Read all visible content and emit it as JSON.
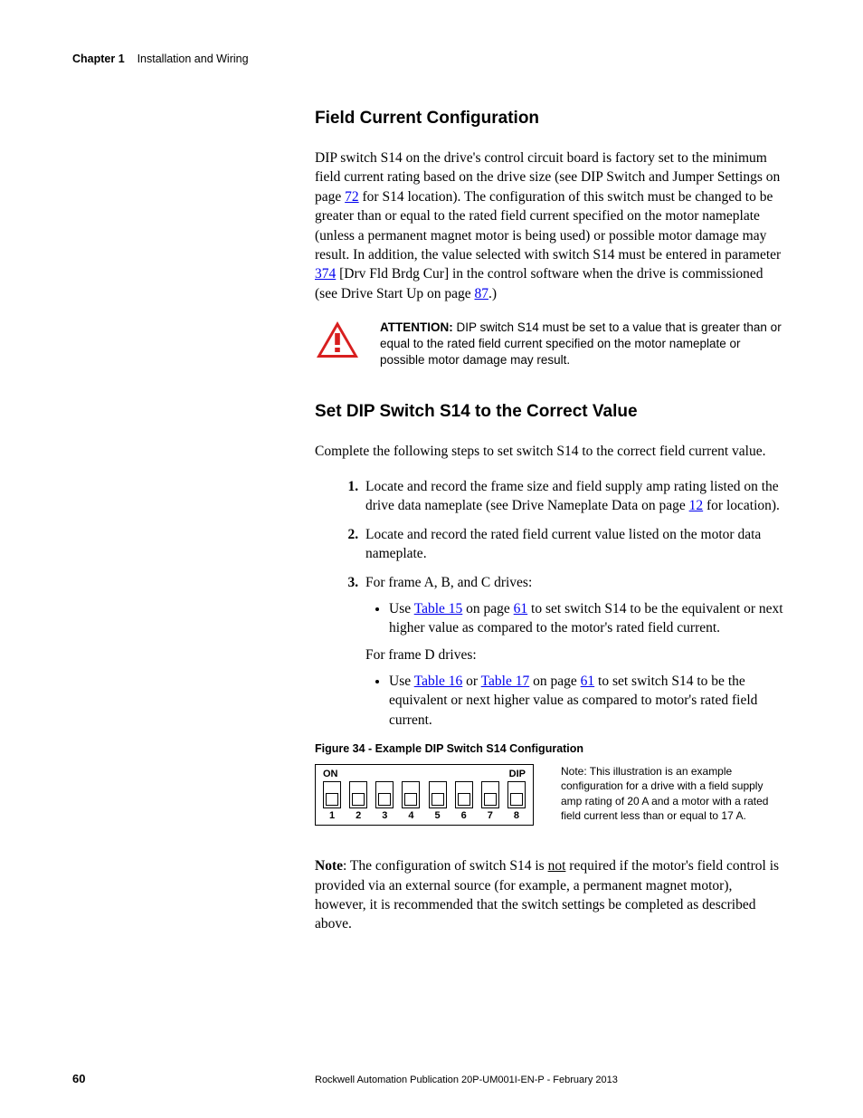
{
  "header": {
    "chapter_label": "Chapter 1",
    "chapter_title": "Installation and Wiring"
  },
  "section1": {
    "heading": "Field Current Configuration",
    "para_parts": {
      "p1a": "DIP switch S14 on the drive's control circuit board is factory set to the minimum field current rating based on the drive size (see DIP Switch and Jumper Settings on page ",
      "link72": "72",
      "p1b": " for S14 location). The configuration of this switch must be changed to be greater than or equal to the rated field current specified on the motor nameplate (unless a permanent magnet motor is being used) or possible motor damage may result. In addition, the value selected with switch S14 must be entered in parameter ",
      "link374": "374",
      "p1c": " [Drv Fld Brdg Cur] in the control software when the drive is commissioned (see Drive Start Up on page ",
      "link87": "87",
      "p1d": ".)"
    }
  },
  "attention": {
    "label": "ATTENTION: ",
    "text": "DIP switch S14 must be set to a value that is greater than or equal to the rated field current specified on the motor nameplate or possible motor damage may result.",
    "icon_color": "#d81f1f"
  },
  "section2": {
    "heading": "Set DIP Switch S14 to the Correct Value",
    "intro": "Complete the following steps to set switch S14 to the correct field current value.",
    "step1": {
      "a": "Locate and record the frame size and field supply amp rating listed on the drive data nameplate (see Drive Nameplate Data on page ",
      "link12": "12",
      "b": " for location)."
    },
    "step2": "Locate and record the rated field current value listed on the motor data nameplate.",
    "step3": {
      "lead": "For frame A, B, and C drives:",
      "bullet1a": "Use ",
      "bullet1_link15": "Table 15",
      "bullet1b": " on page ",
      "bullet1_link61": "61",
      "bullet1c": " to set switch S14 to be the equivalent or next higher value as compared to the motor's rated field current.",
      "lead2": "For frame D drives:",
      "bullet2a": "Use ",
      "bullet2_link16": "Table 16",
      "bullet2b": " or ",
      "bullet2_link17": "Table 17",
      "bullet2c": " on page ",
      "bullet2_link61": "61",
      "bullet2d": " to set switch S14 to be the equivalent or next higher value as compared to motor's rated field current."
    }
  },
  "figure": {
    "caption": "Figure 34 - Example DIP Switch S14 Configuration",
    "on_label": "ON",
    "dip_label": "DIP",
    "switch_states": [
      "off",
      "off",
      "off",
      "off",
      "off",
      "off",
      "off",
      "off"
    ],
    "numbers": [
      "1",
      "2",
      "3",
      "4",
      "5",
      "6",
      "7",
      "8"
    ],
    "side_note": "Note: This illustration is an example configuration for a drive with a field supply amp rating of 20 A and a motor with a rated field current less than or equal to 17 A."
  },
  "note": {
    "label": "Note",
    "a": ": The configuration of switch S14 is ",
    "not": "not",
    "b": " required if the motor's field control is provided via an external source (for example, a permanent magnet motor), however, it is recommended that the switch settings be completed as described above."
  },
  "footer": {
    "page_number": "60",
    "publication": "Rockwell Automation Publication 20P-UM001I-EN-P - February 2013"
  }
}
